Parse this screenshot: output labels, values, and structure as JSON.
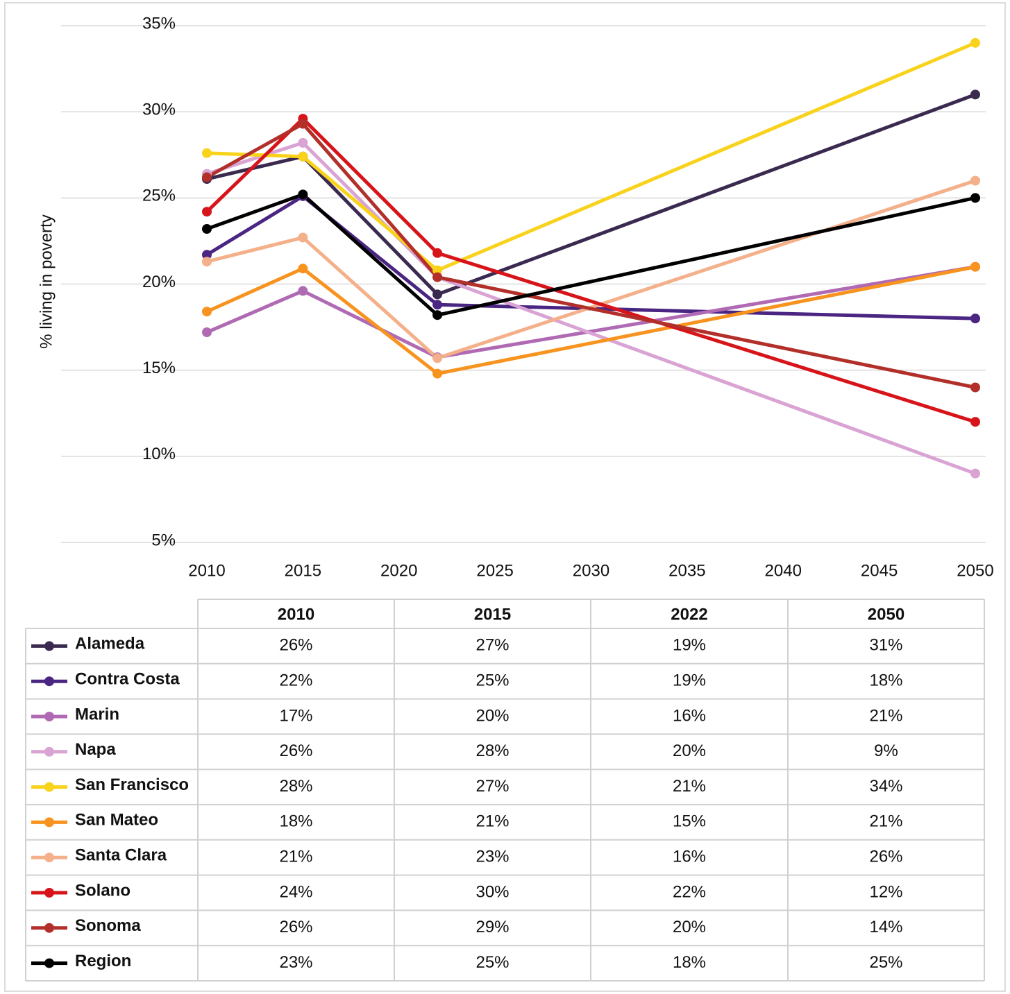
{
  "chart_data": {
    "type": "line",
    "y_label": "% living in poverty",
    "x": [
      2010,
      2015,
      2022,
      2050
    ],
    "xlim": [
      2010,
      2050
    ],
    "xticks": [
      2010,
      2015,
      2020,
      2025,
      2030,
      2035,
      2040,
      2045,
      2050
    ],
    "ylim": [
      5,
      35
    ],
    "yticks": [
      {
        "value": 5,
        "label": "5%"
      },
      {
        "value": 10,
        "label": "10%"
      },
      {
        "value": 15,
        "label": "15%"
      },
      {
        "value": 20,
        "label": "20%"
      },
      {
        "value": 25,
        "label": "25%"
      },
      {
        "value": 30,
        "label": "30%"
      },
      {
        "value": 35,
        "label": "35%"
      }
    ],
    "grid": true,
    "series": [
      {
        "name": "Alameda",
        "color": "#3b2a4f",
        "values": [
          26.1,
          27.4,
          19.4,
          31.0
        ],
        "value_labels": [
          "26%",
          "27%",
          "19%",
          "31%"
        ]
      },
      {
        "name": "Contra Costa",
        "color": "#4b2582",
        "values": [
          21.7,
          25.1,
          18.8,
          18.0
        ],
        "value_labels": [
          "22%",
          "25%",
          "19%",
          "18%"
        ]
      },
      {
        "name": "Marin",
        "color": "#b06ab3",
        "values": [
          17.2,
          19.6,
          15.75,
          21.0
        ],
        "value_labels": [
          "17%",
          "20%",
          "16%",
          "21%"
        ]
      },
      {
        "name": "Napa",
        "color": "#d9a3d3",
        "values": [
          26.4,
          28.2,
          20.4,
          9.0
        ],
        "value_labels": [
          "26%",
          "28%",
          "20%",
          "9%"
        ]
      },
      {
        "name": "San Francisco",
        "color": "#f9d21b",
        "values": [
          27.6,
          27.4,
          20.8,
          34.0
        ],
        "value_labels": [
          "28%",
          "27%",
          "21%",
          "34%"
        ]
      },
      {
        "name": "San Mateo",
        "color": "#f7931e",
        "values": [
          18.4,
          20.9,
          14.8,
          21.0
        ],
        "value_labels": [
          "18%",
          "21%",
          "15%",
          "21%"
        ]
      },
      {
        "name": "Santa Clara",
        "color": "#f4b08a",
        "values": [
          21.3,
          22.7,
          15.7,
          26.0
        ],
        "value_labels": [
          "21%",
          "23%",
          "16%",
          "26%"
        ]
      },
      {
        "name": "Solano",
        "color": "#d7141a",
        "values": [
          24.2,
          29.6,
          21.8,
          12.0
        ],
        "value_labels": [
          "24%",
          "30%",
          "22%",
          "12%"
        ]
      },
      {
        "name": "Sonoma",
        "color": "#b22f2a",
        "values": [
          26.2,
          29.3,
          20.4,
          14.0
        ],
        "value_labels": [
          "26%",
          "29%",
          "20%",
          "14%"
        ]
      },
      {
        "name": "Region",
        "color": "#000000",
        "values": [
          23.2,
          25.2,
          18.2,
          25.0
        ],
        "value_labels": [
          "23%",
          "25%",
          "18%",
          "25%"
        ]
      }
    ]
  }
}
